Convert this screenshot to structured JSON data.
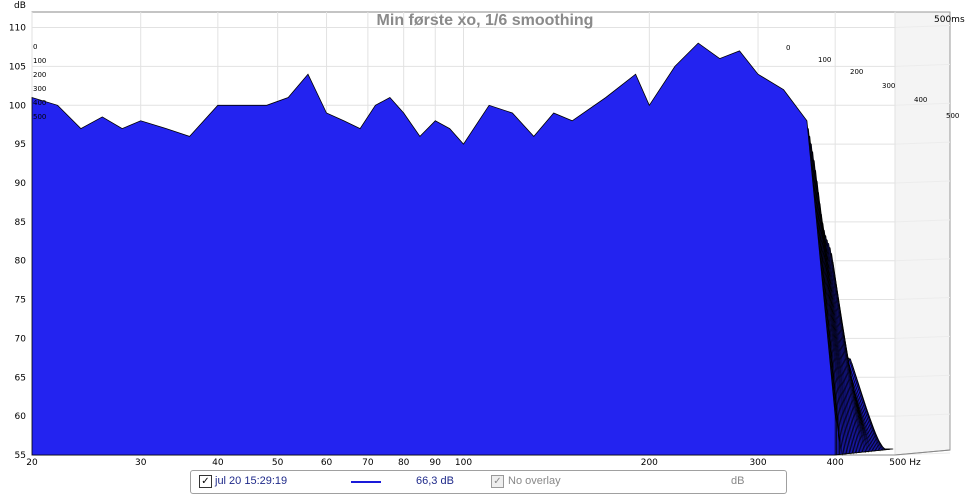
{
  "chart_data": {
    "type": "area",
    "title": "Min første xo, 1/6 smoothing",
    "ylabel": "dB",
    "xlabel_unit": "Hz",
    "x_scale": "log",
    "xlim": [
      20,
      500
    ],
    "ylim": [
      55,
      112
    ],
    "x_ticks": [
      "20",
      "30",
      "40",
      "50",
      "60",
      "70",
      "80",
      "90",
      "100",
      "200",
      "300",
      "400",
      "500 Hz"
    ],
    "y_ticks": [
      "55",
      "60",
      "65",
      "70",
      "75",
      "80",
      "85",
      "90",
      "95",
      "100",
      "105",
      "110"
    ],
    "z_label": "500ms",
    "z_ticks_left": [
      "0",
      "100",
      "200",
      "300",
      "400",
      "500"
    ],
    "z_ticks_right": [
      "0",
      "100",
      "200",
      "300",
      "400",
      "500"
    ],
    "z_range_ms": [
      0,
      500
    ],
    "fill_color": "#2323f0",
    "line_color": "#000000",
    "front_series": {
      "x": [
        20,
        22,
        24,
        26,
        28,
        30,
        33,
        36,
        40,
        44,
        48,
        52,
        56,
        60,
        64,
        68,
        72,
        76,
        80,
        85,
        90,
        95,
        100,
        110,
        120,
        130,
        140,
        150,
        170,
        190,
        200,
        220,
        240,
        260,
        280,
        300,
        330,
        360,
        400
      ],
      "y": [
        101,
        100,
        97,
        98.5,
        97,
        98,
        97,
        96,
        100,
        100,
        100,
        101,
        104,
        99,
        98,
        97,
        100,
        101,
        99,
        96,
        98,
        97,
        95,
        100,
        99,
        96,
        99,
        98,
        101,
        104,
        100,
        105,
        108,
        106,
        107,
        104,
        102,
        98,
        60
      ]
    }
  },
  "legend": {
    "series_checked": "✓",
    "series_label": "jul 20 15:29:19",
    "series_value": "66,3 dB",
    "overlay_checked": "✓",
    "overlay_label": "No overlay",
    "overlay_unit": "dB"
  }
}
